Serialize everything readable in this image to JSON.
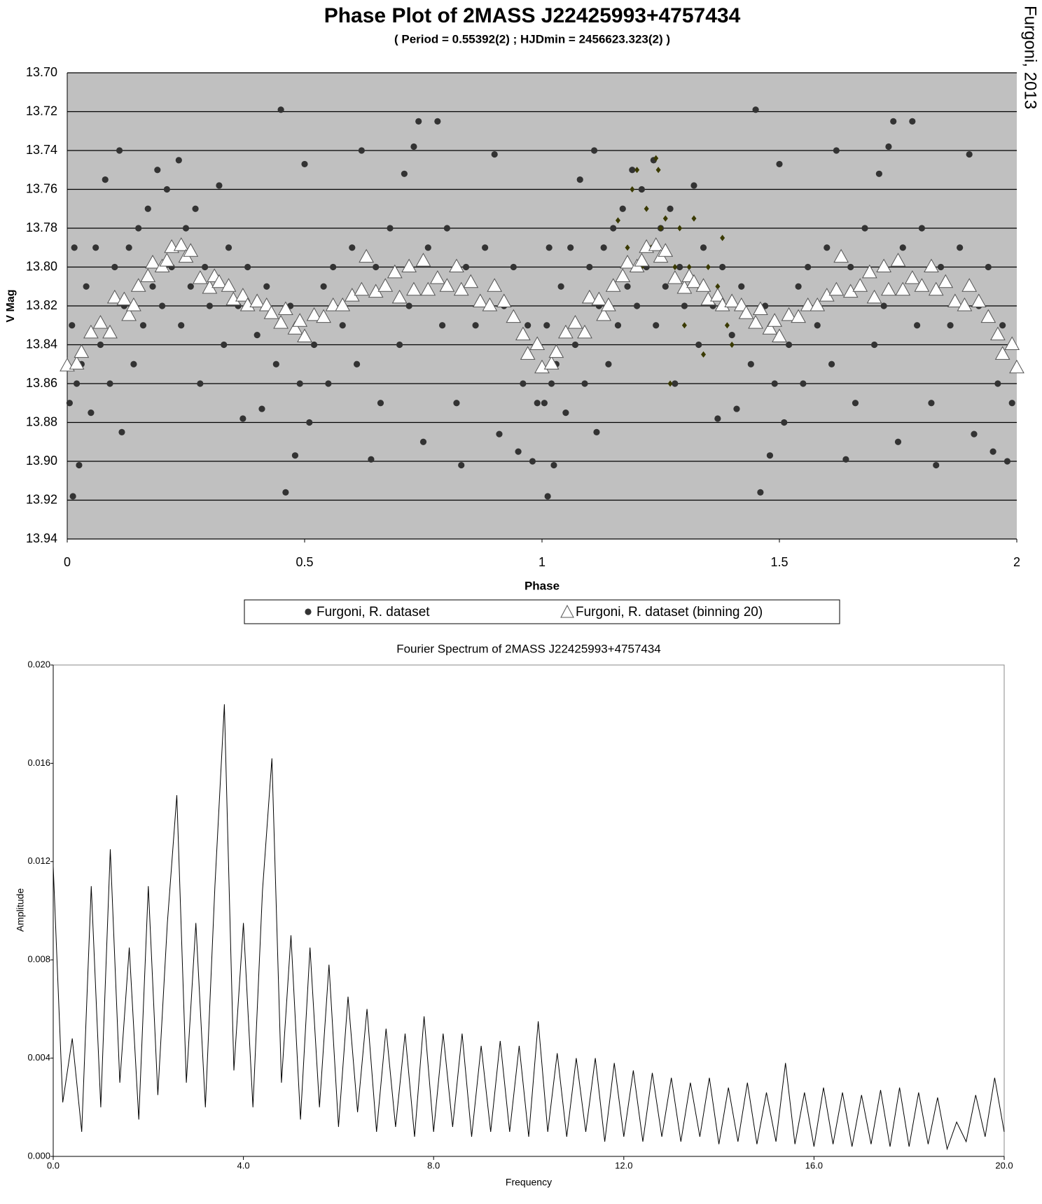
{
  "annotation": "Furgoni, 2013",
  "chart_data": [
    {
      "type": "scatter",
      "title": "Phase Plot of 2MASS J22425993+4757434",
      "subtitle": "( Period = 0.55392(2) ; HJDmin = 2456623.323(2) )",
      "x_label": "Phase",
      "y_label": "V Mag",
      "xlim": [
        0,
        2
      ],
      "xticks": [
        0,
        0.5,
        1,
        1.5,
        2
      ],
      "ylim": [
        13.94,
        13.7
      ],
      "yticks": [
        {
          "value": 13.7,
          "label": "13.70"
        },
        13.72,
        13.74,
        13.76,
        13.78,
        {
          "value": 13.8,
          "label": "13.80"
        },
        13.82,
        13.84,
        13.86,
        13.88,
        {
          "value": 13.9,
          "label": "13.90"
        },
        13.92,
        13.94
      ],
      "grid": true,
      "background": "#c0c0c0",
      "series": [
        {
          "name": "Furgoni, R. dataset",
          "color": "#333333",
          "marker": "circle",
          "x": [
            0.005,
            0.01,
            0.012,
            0.015,
            0.02,
            0.025,
            0.03,
            0.04,
            0.05,
            0.06,
            0.07,
            0.08,
            0.09,
            0.1,
            0.11,
            0.115,
            0.12,
            0.13,
            0.14,
            0.15,
            0.16,
            0.17,
            0.18,
            0.19,
            0.2,
            0.21,
            0.22,
            0.235,
            0.24,
            0.25,
            0.26,
            0.27,
            0.28,
            0.29,
            0.3,
            0.32,
            0.33,
            0.34,
            0.36,
            0.37,
            0.38,
            0.4,
            0.41,
            0.42,
            0.44,
            0.45,
            0.46,
            0.47,
            0.48,
            0.49,
            0.5,
            0.51,
            0.52,
            0.54,
            0.55,
            0.56,
            0.58,
            0.6,
            0.61,
            0.62,
            0.64,
            0.65,
            0.66,
            0.68,
            0.7,
            0.71,
            0.72,
            0.73,
            0.74,
            0.75,
            0.76,
            0.78,
            0.79,
            0.8,
            0.82,
            0.83,
            0.84,
            0.86,
            0.88,
            0.9,
            0.91,
            0.92,
            0.94,
            0.95,
            0.96,
            0.97,
            0.98,
            0.99,
            1.005,
            1.01,
            1.012,
            1.015,
            1.02,
            1.025,
            1.03,
            1.04,
            1.05,
            1.06,
            1.07,
            1.08,
            1.09,
            1.1,
            1.11,
            1.115,
            1.12,
            1.13,
            1.14,
            1.15,
            1.16,
            1.17,
            1.18,
            1.19,
            1.2,
            1.21,
            1.22,
            1.235,
            1.24,
            1.25,
            1.26,
            1.27,
            1.28,
            1.29,
            1.3,
            1.32,
            1.33,
            1.34,
            1.36,
            1.37,
            1.38,
            1.4,
            1.41,
            1.42,
            1.44,
            1.45,
            1.46,
            1.47,
            1.48,
            1.49,
            1.5,
            1.51,
            1.52,
            1.54,
            1.55,
            1.56,
            1.58,
            1.6,
            1.61,
            1.62,
            1.64,
            1.65,
            1.66,
            1.68,
            1.7,
            1.71,
            1.72,
            1.73,
            1.74,
            1.75,
            1.76,
            1.78,
            1.79,
            1.8,
            1.82,
            1.83,
            1.84,
            1.86,
            1.88,
            1.9,
            1.91,
            1.92,
            1.94,
            1.95,
            1.96,
            1.97,
            1.98,
            1.99
          ],
          "values": [
            13.87,
            13.83,
            13.918,
            13.79,
            13.86,
            13.902,
            13.85,
            13.81,
            13.875,
            13.79,
            13.84,
            13.755,
            13.86,
            13.8,
            13.74,
            13.885,
            13.82,
            13.79,
            13.85,
            13.78,
            13.83,
            13.77,
            13.81,
            13.75,
            13.82,
            13.76,
            13.8,
            13.745,
            13.83,
            13.78,
            13.81,
            13.77,
            13.86,
            13.8,
            13.82,
            13.758,
            13.84,
            13.79,
            13.82,
            13.878,
            13.8,
            13.835,
            13.873,
            13.81,
            13.85,
            13.719,
            13.916,
            13.82,
            13.897,
            13.86,
            13.747,
            13.88,
            13.84,
            13.81,
            13.86,
            13.8,
            13.83,
            13.79,
            13.85,
            13.74,
            13.899,
            13.8,
            13.87,
            13.78,
            13.84,
            13.752,
            13.82,
            13.738,
            13.725,
            13.89,
            13.79,
            13.725,
            13.83,
            13.78,
            13.87,
            13.902,
            13.8,
            13.83,
            13.79,
            13.742,
            13.886,
            13.82,
            13.8,
            13.895,
            13.86,
            13.83,
            13.9,
            13.87,
            13.87,
            13.83,
            13.918,
            13.79,
            13.86,
            13.902,
            13.85,
            13.81,
            13.875,
            13.79,
            13.84,
            13.755,
            13.86,
            13.8,
            13.74,
            13.885,
            13.82,
            13.79,
            13.85,
            13.78,
            13.83,
            13.77,
            13.81,
            13.75,
            13.82,
            13.76,
            13.8,
            13.745,
            13.83,
            13.78,
            13.81,
            13.77,
            13.86,
            13.8,
            13.82,
            13.758,
            13.84,
            13.79,
            13.82,
            13.878,
            13.8,
            13.835,
            13.873,
            13.81,
            13.85,
            13.719,
            13.916,
            13.82,
            13.897,
            13.86,
            13.747,
            13.88,
            13.84,
            13.81,
            13.86,
            13.8,
            13.83,
            13.79,
            13.85,
            13.74,
            13.899,
            13.8,
            13.87,
            13.78,
            13.84,
            13.752,
            13.82,
            13.738,
            13.725,
            13.89,
            13.79,
            13.725,
            13.83,
            13.78,
            13.87,
            13.902,
            13.8,
            13.83,
            13.79,
            13.742,
            13.886,
            13.82,
            13.8,
            13.895,
            13.86,
            13.83,
            13.9,
            13.87
          ]
        },
        {
          "color": "#3a3a00",
          "marker": "diamond",
          "x": [
            1.16,
            1.18,
            1.19,
            1.2,
            1.21,
            1.22,
            1.23,
            1.24,
            1.245,
            1.25,
            1.26,
            1.27,
            1.28,
            1.29,
            1.3,
            1.31,
            1.32,
            1.33,
            1.34,
            1.35,
            1.37,
            1.38,
            1.39,
            1.4,
            1.42
          ],
          "values": [
            13.776,
            13.79,
            13.76,
            13.75,
            13.8,
            13.77,
            13.79,
            13.744,
            13.75,
            13.78,
            13.775,
            13.86,
            13.8,
            13.78,
            13.83,
            13.8,
            13.775,
            13.81,
            13.845,
            13.8,
            13.81,
            13.785,
            13.83,
            13.84,
            13.82
          ]
        },
        {
          "name": "Furgoni, R. dataset (binning 20)",
          "color": "#ffffff",
          "marker": "triangle",
          "x": [
            0,
            0.02,
            0.03,
            0.05,
            0.07,
            0.09,
            0.1,
            0.12,
            0.13,
            0.14,
            0.15,
            0.17,
            0.18,
            0.2,
            0.21,
            0.22,
            0.24,
            0.25,
            0.26,
            0.28,
            0.3,
            0.31,
            0.32,
            0.34,
            0.35,
            0.37,
            0.38,
            0.4,
            0.42,
            0.43,
            0.45,
            0.46,
            0.48,
            0.49,
            0.5,
            0.52,
            0.54,
            0.56,
            0.58,
            0.6,
            0.62,
            0.63,
            0.65,
            0.67,
            0.69,
            0.7,
            0.72,
            0.73,
            0.75,
            0.76,
            0.78,
            0.8,
            0.82,
            0.83,
            0.85,
            0.87,
            0.89,
            0.9,
            0.92,
            0.94,
            0.96,
            0.97,
            0.99,
            1,
            1.02,
            1.03,
            1.05,
            1.07,
            1.09,
            1.1,
            1.12,
            1.13,
            1.14,
            1.15,
            1.17,
            1.18,
            1.2,
            1.21,
            1.22,
            1.24,
            1.25,
            1.26,
            1.28,
            1.3,
            1.31,
            1.32,
            1.34,
            1.35,
            1.37,
            1.38,
            1.4,
            1.42,
            1.43,
            1.45,
            1.46,
            1.48,
            1.49,
            1.5,
            1.52,
            1.54,
            1.56,
            1.58,
            1.6,
            1.62,
            1.63,
            1.65,
            1.67,
            1.69,
            1.7,
            1.72,
            1.73,
            1.75,
            1.76,
            1.78,
            1.8,
            1.82,
            1.83,
            1.85,
            1.87,
            1.89,
            1.9,
            1.92,
            1.94,
            1.96,
            1.97,
            1.99,
            2
          ],
          "values": [
            13.851,
            13.85,
            13.844,
            13.834,
            13.829,
            13.834,
            13.816,
            13.817,
            13.825,
            13.82,
            13.81,
            13.805,
            13.798,
            13.8,
            13.797,
            13.79,
            13.789,
            13.795,
            13.792,
            13.806,
            13.811,
            13.805,
            13.808,
            13.81,
            13.817,
            13.815,
            13.82,
            13.818,
            13.82,
            13.824,
            13.829,
            13.822,
            13.832,
            13.828,
            13.836,
            13.825,
            13.826,
            13.82,
            13.82,
            13.815,
            13.812,
            13.795,
            13.813,
            13.81,
            13.803,
            13.816,
            13.8,
            13.812,
            13.797,
            13.812,
            13.806,
            13.81,
            13.8,
            13.812,
            13.808,
            13.818,
            13.82,
            13.81,
            13.818,
            13.826,
            13.835,
            13.845,
            13.84,
            13.852,
            13.85,
            13.844,
            13.834,
            13.829,
            13.834,
            13.816,
            13.817,
            13.825,
            13.82,
            13.81,
            13.805,
            13.798,
            13.8,
            13.797,
            13.79,
            13.789,
            13.795,
            13.792,
            13.806,
            13.811,
            13.805,
            13.808,
            13.81,
            13.817,
            13.815,
            13.82,
            13.818,
            13.82,
            13.824,
            13.829,
            13.822,
            13.832,
            13.828,
            13.836,
            13.825,
            13.826,
            13.82,
            13.82,
            13.815,
            13.812,
            13.795,
            13.813,
            13.81,
            13.803,
            13.816,
            13.8,
            13.812,
            13.797,
            13.812,
            13.806,
            13.81,
            13.8,
            13.812,
            13.808,
            13.818,
            13.82,
            13.81,
            13.818,
            13.826,
            13.835,
            13.845,
            13.84,
            13.852
          ]
        }
      ]
    },
    {
      "type": "line",
      "title": "Fourier Spectrum of 2MASS J22425993+4757434",
      "x_label": "Frequency",
      "y_label": "Amplitude",
      "xlim": [
        0,
        20
      ],
      "xticks": [
        {
          "value": 0,
          "label": "0.0"
        },
        {
          "value": 4,
          "label": "4.0"
        },
        {
          "value": 8,
          "label": "8.0"
        },
        {
          "value": 12,
          "label": "12.0"
        },
        {
          "value": 16,
          "label": "16.0"
        },
        {
          "value": 20,
          "label": "20.0"
        }
      ],
      "ylim": [
        0,
        0.02
      ],
      "yticks": [
        {
          "value": 0,
          "label": "0.000"
        },
        {
          "value": 0.004,
          "label": "0.004"
        },
        {
          "value": 0.008,
          "label": "0.008"
        },
        {
          "value": 0.012,
          "label": "0.012"
        },
        {
          "value": 0.016,
          "label": "0.016"
        },
        {
          "value": 0.02,
          "label": "0.020"
        }
      ],
      "grid": false,
      "background": "#ffffff",
      "series": [
        {
          "color": "#000000",
          "x": [
            0,
            0.2,
            0.4,
            0.6,
            0.8,
            1,
            1.2,
            1.4,
            1.6,
            1.8,
            2,
            2.2,
            2.4,
            2.6,
            2.8,
            3,
            3.2,
            3.4,
            3.6,
            3.8,
            4,
            4.2,
            4.4,
            4.6,
            4.8,
            5,
            5.2,
            5.4,
            5.6,
            5.8,
            6,
            6.2,
            6.4,
            6.6,
            6.8,
            7,
            7.2,
            7.4,
            7.6,
            7.8,
            8,
            8.2,
            8.4,
            8.6,
            8.8,
            9,
            9.2,
            9.4,
            9.6,
            9.8,
            10,
            10.2,
            10.4,
            10.6,
            10.8,
            11,
            11.2,
            11.4,
            11.6,
            11.8,
            12,
            12.2,
            12.4,
            12.6,
            12.8,
            13,
            13.2,
            13.4,
            13.6,
            13.8,
            14,
            14.2,
            14.4,
            14.6,
            14.8,
            15,
            15.2,
            15.4,
            15.6,
            15.8,
            16,
            16.2,
            16.4,
            16.6,
            16.8,
            17,
            17.2,
            17.4,
            17.6,
            17.8,
            18,
            18.2,
            18.4,
            18.6,
            18.8,
            19,
            19.2,
            19.4,
            19.6,
            19.8,
            20
          ],
          "values": [
            0.0118,
            0.0022,
            0.0048,
            0.001,
            0.011,
            0.002,
            0.0125,
            0.003,
            0.0085,
            0.0015,
            0.011,
            0.0025,
            0.0095,
            0.0147,
            0.003,
            0.0095,
            0.002,
            0.011,
            0.0184,
            0.0035,
            0.0095,
            0.002,
            0.0108,
            0.0162,
            0.003,
            0.009,
            0.0015,
            0.0085,
            0.002,
            0.0078,
            0.0012,
            0.0065,
            0.0018,
            0.006,
            0.001,
            0.0052,
            0.0012,
            0.005,
            0.0008,
            0.0057,
            0.001,
            0.005,
            0.0012,
            0.005,
            0.0008,
            0.0045,
            0.001,
            0.0047,
            0.001,
            0.0045,
            0.0008,
            0.0055,
            0.001,
            0.0042,
            0.0008,
            0.004,
            0.001,
            0.004,
            0.0006,
            0.0038,
            0.0008,
            0.0035,
            0.0006,
            0.0034,
            0.0008,
            0.0032,
            0.0006,
            0.003,
            0.0008,
            0.0032,
            0.0005,
            0.0028,
            0.0006,
            0.003,
            0.0005,
            0.0026,
            0.0006,
            0.0038,
            0.0005,
            0.0026,
            0.0004,
            0.0028,
            0.0005,
            0.0026,
            0.0004,
            0.0025,
            0.0005,
            0.0027,
            0.0004,
            0.0028,
            0.0004,
            0.0026,
            0.0005,
            0.0024,
            0.0003,
            0.0014,
            0.0006,
            0.0025,
            0.0008,
            0.0032,
            0.001
          ]
        }
      ]
    }
  ]
}
